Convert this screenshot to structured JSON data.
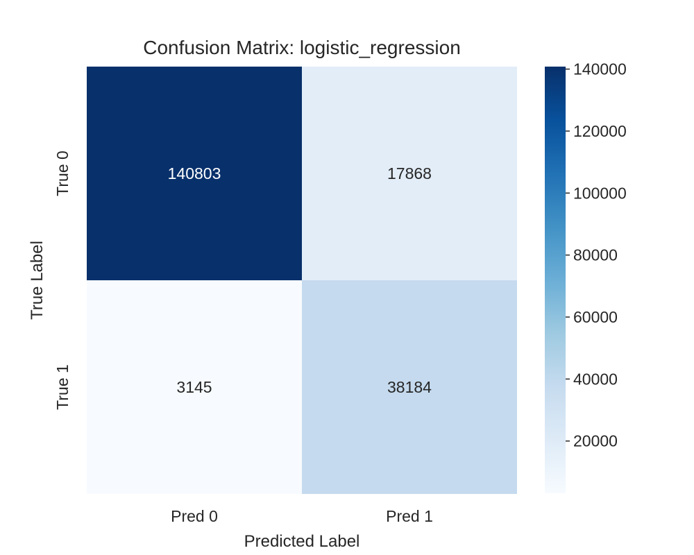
{
  "chart_data": {
    "type": "heatmap",
    "title": "Confusion Matrix: logistic_regression",
    "xlabel": "Predicted Label",
    "ylabel": "True Label",
    "x_categories": [
      "Pred 0",
      "Pred 1"
    ],
    "y_categories": [
      "True 0",
      "True 1"
    ],
    "values": [
      [
        140803,
        17868
      ],
      [
        3145,
        38184
      ]
    ],
    "value_labels": [
      [
        "140803",
        "17868"
      ],
      [
        "3145",
        "38184"
      ]
    ],
    "colormap": "Blues",
    "colorbar": {
      "min": 3145,
      "max": 140803,
      "ticks": [
        20000,
        40000,
        60000,
        80000,
        100000,
        120000,
        140000
      ],
      "tick_labels": [
        "20000",
        "40000",
        "60000",
        "80000",
        "100000",
        "120000",
        "140000"
      ]
    }
  },
  "colors": {
    "text_dark": "#262626",
    "text_light": "#ffffff",
    "blues_stops": [
      "#f7fbff",
      "#deebf7",
      "#c6dbef",
      "#9ecae1",
      "#6baed6",
      "#4292c6",
      "#2171b5",
      "#08519c",
      "#08306b"
    ]
  }
}
